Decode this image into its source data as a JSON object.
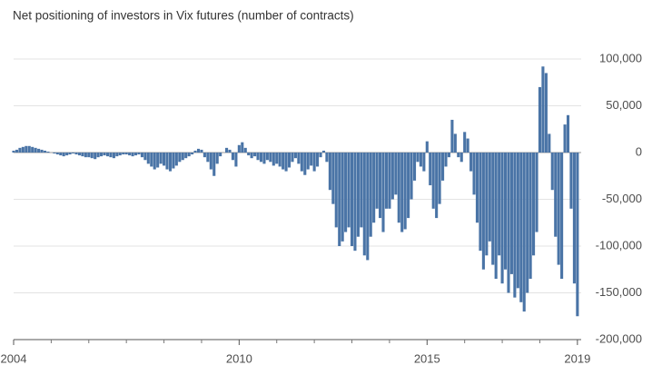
{
  "chart_data": {
    "type": "bar",
    "title": "Net positioning of investors in Vix futures (number of contracts)",
    "color": "#4a74a6",
    "grid": true,
    "x": [
      2004,
      2004.083,
      2004.167,
      2004.25,
      2004.333,
      2004.417,
      2004.5,
      2004.583,
      2004.667,
      2004.75,
      2004.833,
      2004.917,
      2005,
      2005.083,
      2005.167,
      2005.25,
      2005.333,
      2005.417,
      2005.5,
      2005.583,
      2005.667,
      2005.75,
      2005.833,
      2005.917,
      2006,
      2006.083,
      2006.167,
      2006.25,
      2006.333,
      2006.417,
      2006.5,
      2006.583,
      2006.667,
      2006.75,
      2006.833,
      2006.917,
      2007,
      2007.083,
      2007.167,
      2007.25,
      2007.333,
      2007.417,
      2007.5,
      2007.583,
      2007.667,
      2007.75,
      2007.833,
      2007.917,
      2008,
      2008.083,
      2008.167,
      2008.25,
      2008.333,
      2008.417,
      2008.5,
      2008.583,
      2008.667,
      2008.75,
      2008.833,
      2008.917,
      2009,
      2009.083,
      2009.167,
      2009.25,
      2009.333,
      2009.417,
      2009.5,
      2009.583,
      2009.667,
      2009.75,
      2009.833,
      2009.917,
      2010,
      2010.083,
      2010.167,
      2010.25,
      2010.333,
      2010.417,
      2010.5,
      2010.583,
      2010.667,
      2010.75,
      2010.833,
      2010.917,
      2011,
      2011.083,
      2011.167,
      2011.25,
      2011.333,
      2011.417,
      2011.5,
      2011.583,
      2011.667,
      2011.75,
      2011.833,
      2011.917,
      2012,
      2012.083,
      2012.167,
      2012.25,
      2012.333,
      2012.417,
      2012.5,
      2012.583,
      2012.667,
      2012.75,
      2012.833,
      2012.917,
      2013,
      2013.083,
      2013.167,
      2013.25,
      2013.333,
      2013.417,
      2013.5,
      2013.583,
      2013.667,
      2013.75,
      2013.833,
      2013.917,
      2014,
      2014.083,
      2014.167,
      2014.25,
      2014.333,
      2014.417,
      2014.5,
      2014.583,
      2014.667,
      2014.75,
      2014.833,
      2014.917,
      2015,
      2015.083,
      2015.167,
      2015.25,
      2015.333,
      2015.417,
      2015.5,
      2015.583,
      2015.667,
      2015.75,
      2015.833,
      2015.917,
      2016,
      2016.083,
      2016.167,
      2016.25,
      2016.333,
      2016.417,
      2016.5,
      2016.583,
      2016.667,
      2016.75,
      2016.833,
      2016.917,
      2017,
      2017.083,
      2017.167,
      2017.25,
      2017.333,
      2017.417,
      2017.5,
      2017.583,
      2017.667,
      2017.75,
      2017.833,
      2017.917,
      2018,
      2018.083,
      2018.167,
      2018.25,
      2018.333,
      2018.417,
      2018.5,
      2018.583,
      2018.667,
      2018.75,
      2018.833,
      2018.917,
      2019
    ],
    "values": [
      2000,
      3000,
      5000,
      6000,
      7000,
      7000,
      6000,
      5000,
      4000,
      3000,
      2000,
      1000,
      0,
      -1000,
      -2000,
      -3000,
      -4000,
      -3000,
      -2000,
      -1000,
      -2000,
      -3000,
      -4000,
      -5000,
      -5000,
      -6000,
      -7000,
      -5000,
      -4000,
      -3000,
      -4000,
      -5000,
      -6000,
      -4000,
      -3000,
      -2000,
      -2000,
      -3000,
      -4000,
      -3000,
      -2000,
      -5000,
      -8000,
      -12000,
      -15000,
      -18000,
      -16000,
      -12000,
      -14000,
      -18000,
      -20000,
      -17000,
      -14000,
      -10000,
      -8000,
      -6000,
      -4000,
      -2000,
      2000,
      4000,
      3000,
      -5000,
      -10000,
      -18000,
      -25000,
      -12000,
      -4000,
      0,
      5000,
      3000,
      -8000,
      -15000,
      8000,
      11000,
      5000,
      -3000,
      -6000,
      -4000,
      -8000,
      -10000,
      -12000,
      -8000,
      -10000,
      -14000,
      -12000,
      -15000,
      -18000,
      -20000,
      -16000,
      -10000,
      -6000,
      -12000,
      -20000,
      -24000,
      -18000,
      -14000,
      -20000,
      -15000,
      -5000,
      2000,
      -10000,
      -40000,
      -55000,
      -80000,
      -100000,
      -95000,
      -85000,
      -80000,
      -100000,
      -105000,
      -90000,
      -80000,
      -110000,
      -115000,
      -90000,
      -75000,
      -60000,
      -70000,
      -85000,
      -60000,
      -60000,
      -50000,
      -45000,
      -75000,
      -85000,
      -82000,
      -70000,
      -50000,
      -30000,
      -10000,
      -15000,
      -20000,
      12000,
      -35000,
      -60000,
      -70000,
      -55000,
      -30000,
      -15000,
      -5000,
      35000,
      20000,
      -5000,
      -10000,
      22000,
      15000,
      -20000,
      -45000,
      -75000,
      -105000,
      -125000,
      -110000,
      -95000,
      -120000,
      -135000,
      -110000,
      -140000,
      -125000,
      -150000,
      -130000,
      -155000,
      -145000,
      -160000,
      -170000,
      -150000,
      -135000,
      -110000,
      -85000,
      70000,
      92000,
      85000,
      20000,
      -40000,
      -90000,
      -120000,
      -135000,
      30000,
      40000,
      -60000,
      -140000,
      -175000
    ],
    "xlim": [
      2004,
      2019.1
    ],
    "xticks": [
      2004,
      2010,
      2015,
      2019
    ],
    "xminorticks": [
      2005,
      2006,
      2007,
      2008,
      2009,
      2011,
      2012,
      2013,
      2014,
      2016,
      2017,
      2018
    ],
    "ylim": [
      -200000,
      100000
    ],
    "yticks": [
      {
        "value": 100000,
        "label": "100,000"
      },
      {
        "value": 50000,
        "label": "50,000"
      },
      0,
      {
        "value": -50000,
        "label": "-50,000"
      },
      {
        "value": -100000,
        "label": "-100,000"
      },
      {
        "value": -150000,
        "label": "-150,000"
      },
      {
        "value": -200000,
        "label": "-200,000"
      }
    ]
  }
}
